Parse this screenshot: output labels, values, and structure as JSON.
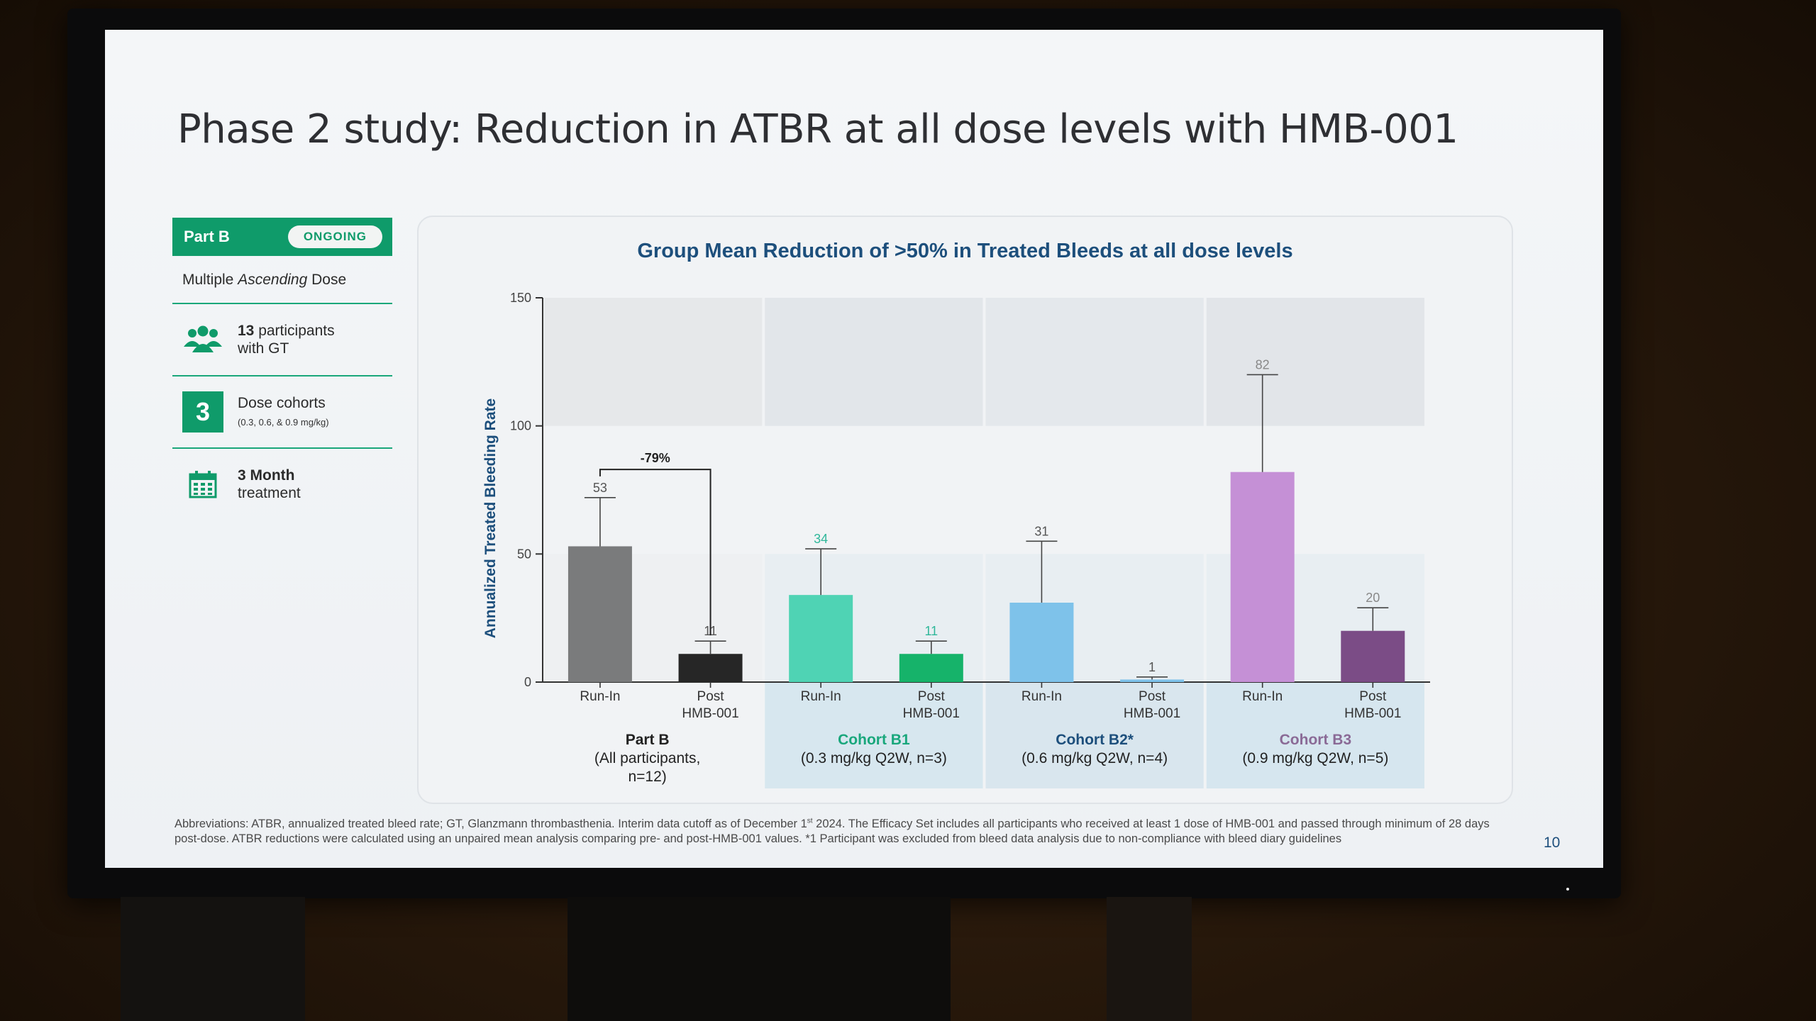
{
  "slide": {
    "title": "Phase 2 study: Reduction in ATBR at all dose levels with HMB-001",
    "page_number": "10",
    "footnote_a": "Abbreviations: ATBR, annualized treated bleed rate; GT, Glanzmann thrombasthenia. Interim data cutoff as of December 1",
    "footnote_sup": "st",
    "footnote_b": " 2024. The Efficacy Set includes all participants who received at least 1 dose of HMB-001 and passed through minimum of 28 days post-dose. ATBR reductions were calculated using an unpaired mean analysis comparing pre- and post-HMB-001 values. *1 Participant was excluded from bleed data analysis due to non-compliance with bleed diary guidelines"
  },
  "left_panel": {
    "part_label": "Part B",
    "status_badge": "ONGOING",
    "dose_prefix": "Multiple ",
    "dose_italic": "Ascending",
    "dose_suffix": " Dose",
    "participants_count": "13",
    "participants_text_1": " participants",
    "participants_text_2": "with GT",
    "cohorts_number": "3",
    "cohorts_label": "Dose cohorts",
    "cohorts_sub": "(0.3, 0.6, & 0.9 mg/kg)",
    "treatment_bold": "3 Month",
    "treatment_text": "treatment",
    "icons": [
      "people-icon",
      "calendar-icon"
    ]
  },
  "chart_data": {
    "type": "bar",
    "title": "Group Mean Reduction of >50% in Treated Bleeds at all dose levels",
    "ylabel": "Annualized Treated Bleeding Rate",
    "ylim": [
      0,
      150
    ],
    "yticks": [
      0,
      50,
      100,
      150
    ],
    "bars": [
      {
        "label": "Run-In",
        "value": 53,
        "err_upper": 72,
        "color": "#7a7b7c",
        "label_color": "#555555"
      },
      {
        "label": "Post HMB-001",
        "value": 11,
        "err_upper": 16,
        "color": "#262626",
        "label_color": "#555555"
      },
      {
        "label": "Run-In",
        "value": 34,
        "err_upper": 52,
        "color": "#4fd3b4",
        "label_color": "#2fb79a"
      },
      {
        "label": "Post HMB-001",
        "value": 11,
        "err_upper": 16,
        "color": "#16b36a",
        "label_color": "#2fb79a"
      },
      {
        "label": "Run-In",
        "value": 31,
        "err_upper": 55,
        "color": "#7ec2ea",
        "label_color": "#555555"
      },
      {
        "label": "Post HMB-001",
        "value": 1,
        "err_upper": 2,
        "color": "#7ec2ea",
        "label_color": "#555555"
      },
      {
        "label": "Run-In",
        "value": 82,
        "err_upper": 120,
        "color": "#c590d6",
        "label_color": "#888888"
      },
      {
        "label": "Post HMB-001",
        "value": 20,
        "err_upper": 29,
        "color": "#7b4c86",
        "label_color": "#888888"
      }
    ],
    "groups": [
      {
        "name": "Part B",
        "sub": "(All participants,",
        "sub2": "n=12)",
        "name_color": "#222222"
      },
      {
        "name": "Cohort B1",
        "sub": "(0.3 mg/kg Q2W, n=3)",
        "sub2": "",
        "name_color": "#19a77c"
      },
      {
        "name": "Cohort B2*",
        "sub": "(0.6 mg/kg Q2W, n=4)",
        "sub2": "",
        "name_color": "#1d4f7c"
      },
      {
        "name": "Cohort B3",
        "sub": "(0.9 mg/kg Q2W, n=5)",
        "sub2": "",
        "name_color": "#8a6a96"
      }
    ],
    "annotation": {
      "text": "-79%",
      "from_bar": 0,
      "to_bar": 1
    }
  }
}
